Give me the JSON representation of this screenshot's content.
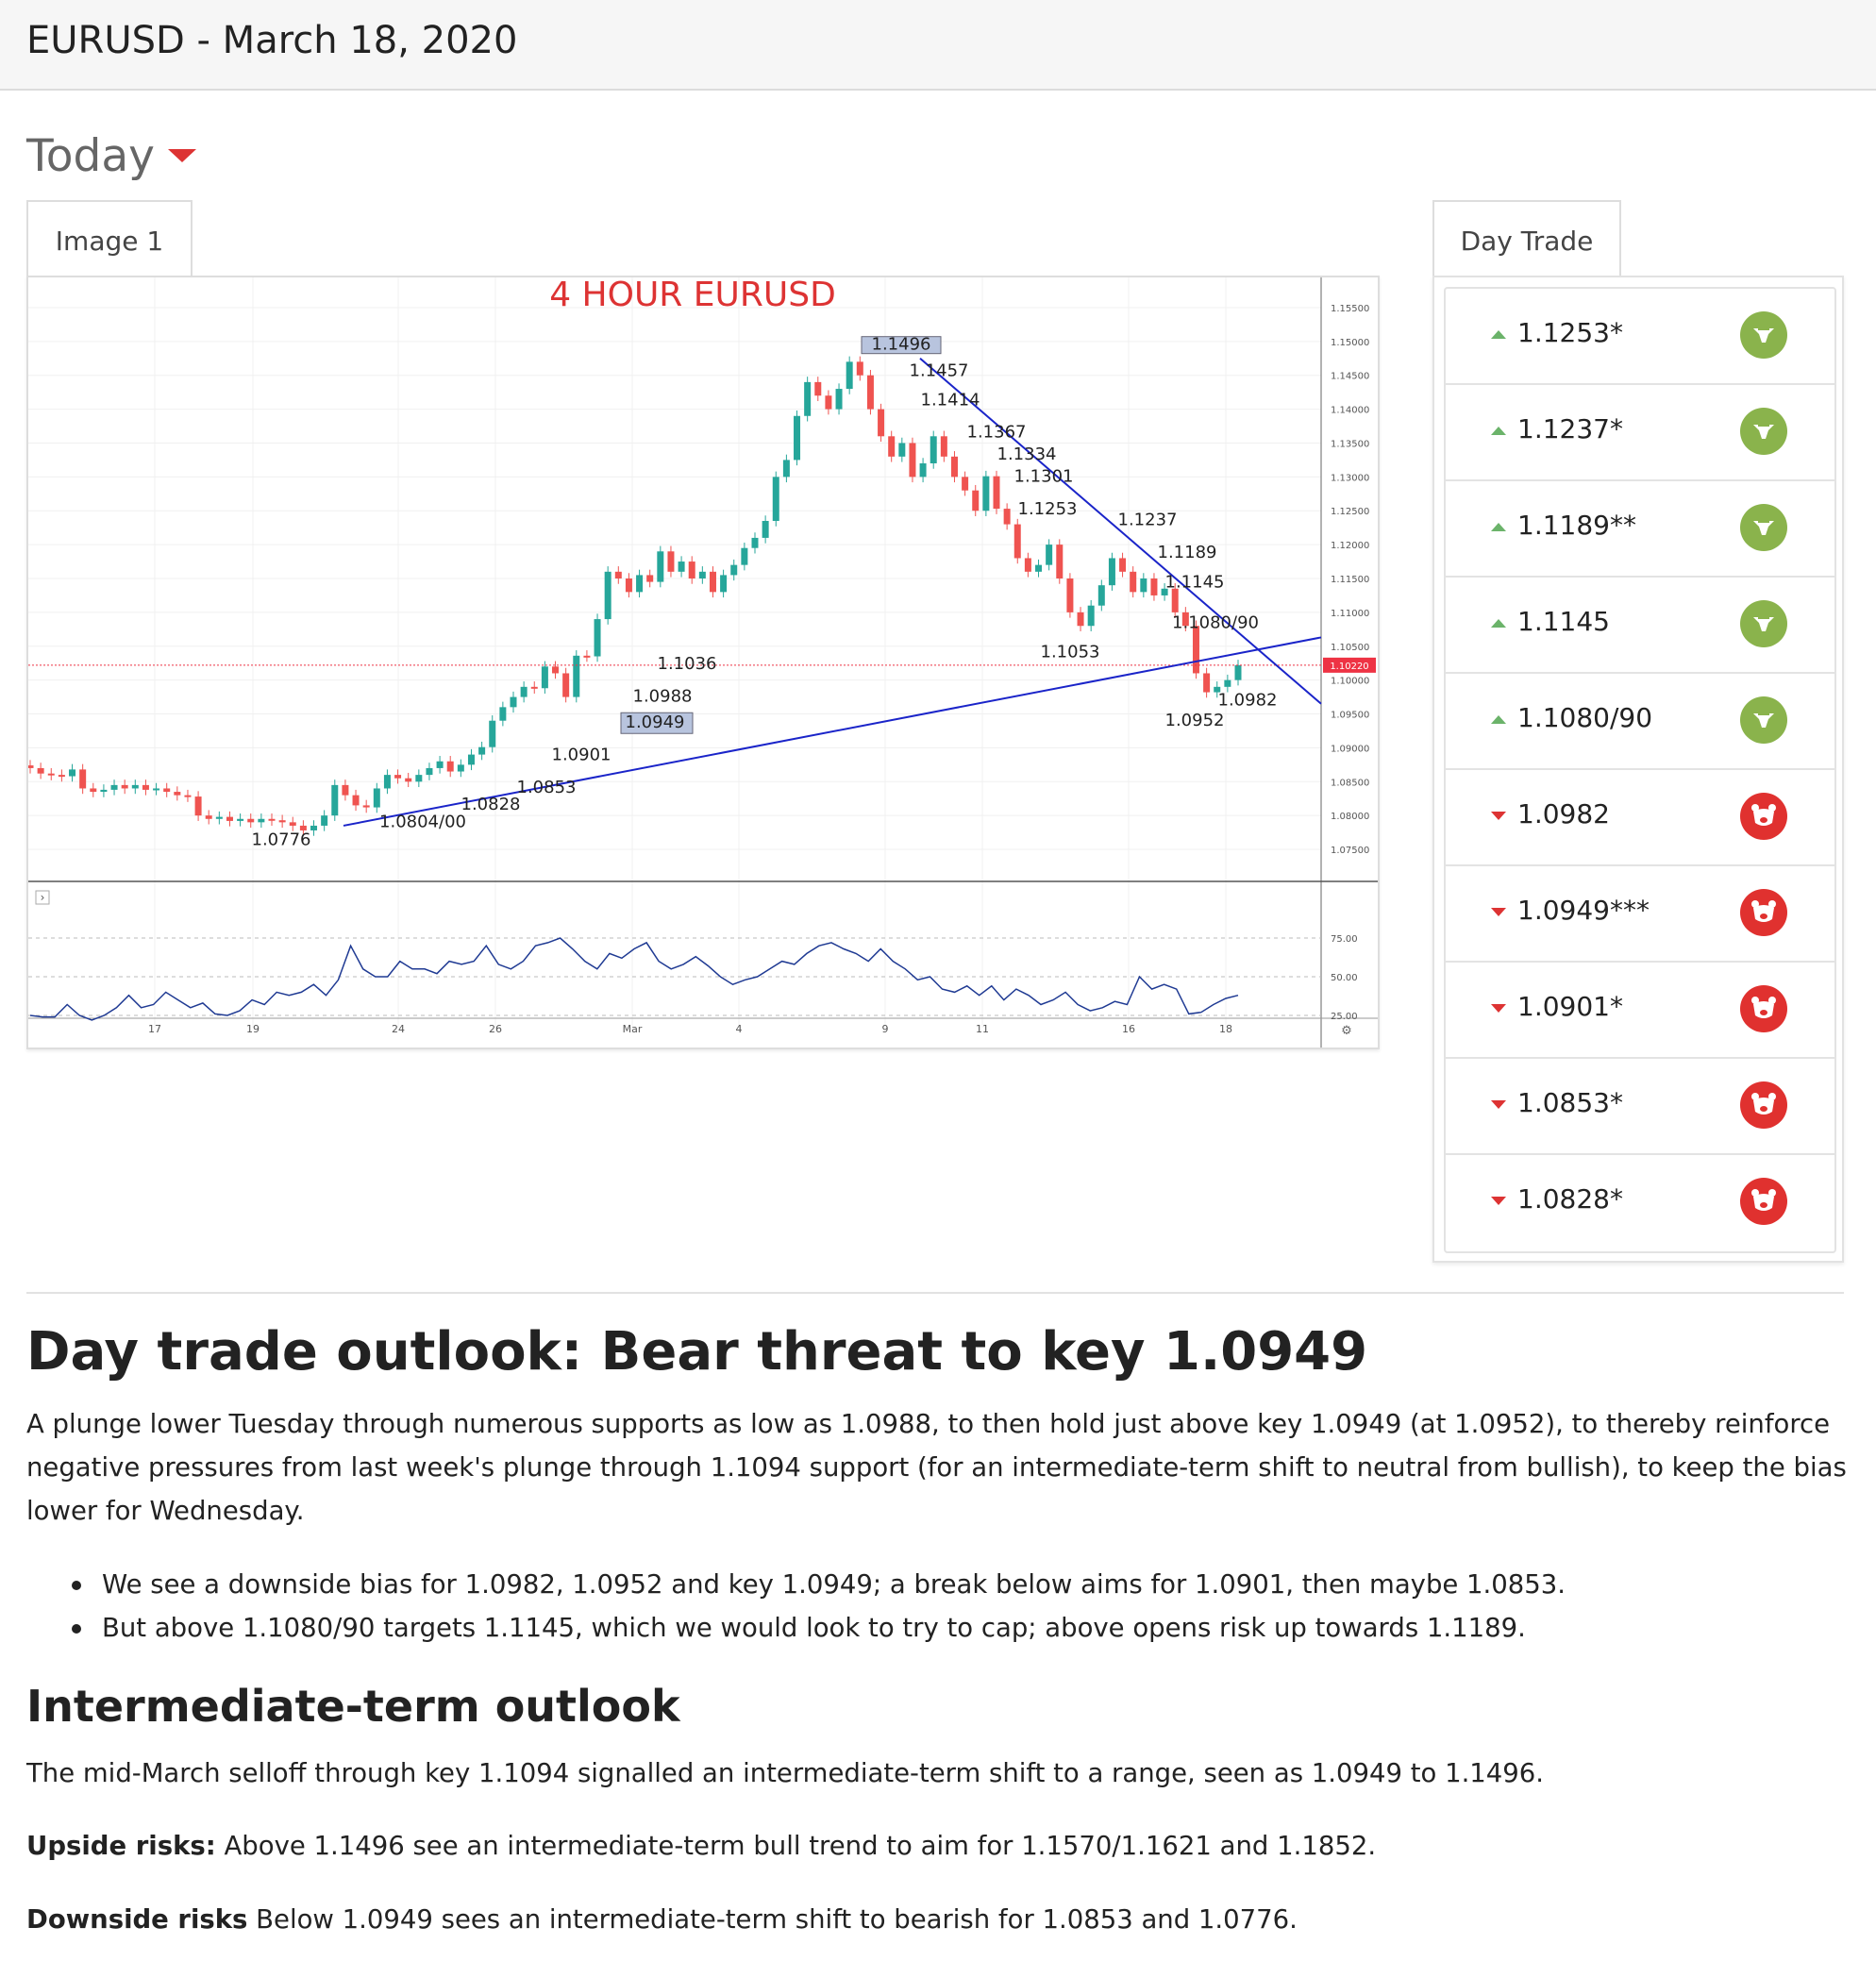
{
  "header": {
    "title": "EURUSD - March 18, 2020"
  },
  "today_label": "Today",
  "tabs": {
    "image_tab": "Image 1",
    "daytrade_tab": "Day Trade"
  },
  "colors": {
    "bull": "#8ab34c",
    "bear": "#e0312f",
    "candle_up": "#26a69a",
    "candle_down": "#ef5350",
    "trendline": "#1a24c9"
  },
  "day_trade_levels": [
    {
      "value": "1.1253*",
      "dir": "up",
      "icon": "bull-icon"
    },
    {
      "value": "1.1237*",
      "dir": "up",
      "icon": "bull-icon"
    },
    {
      "value": "1.1189**",
      "dir": "up",
      "icon": "bull-icon"
    },
    {
      "value": "1.1145",
      "dir": "up",
      "icon": "bull-icon"
    },
    {
      "value": "1.1080/90",
      "dir": "up",
      "icon": "bull-icon"
    },
    {
      "value": "1.0982",
      "dir": "down",
      "icon": "bear-icon"
    },
    {
      "value": "1.0949***",
      "dir": "down",
      "icon": "bear-icon"
    },
    {
      "value": "1.0901*",
      "dir": "down",
      "icon": "bear-icon"
    },
    {
      "value": "1.0853*",
      "dir": "down",
      "icon": "bear-icon"
    },
    {
      "value": "1.0828*",
      "dir": "down",
      "icon": "bear-icon"
    }
  ],
  "chart_data": {
    "type": "candlestick",
    "title": "4 HOUR EURUSD",
    "y_ticks": [
      "1.15500",
      "1.15000",
      "1.14500",
      "1.14000",
      "1.13500",
      "1.13000",
      "1.12500",
      "1.12000",
      "1.11500",
      "1.11000",
      "1.10500",
      "1.10000",
      "1.09500",
      "1.09000",
      "1.08500",
      "1.08000",
      "1.07500"
    ],
    "ylim": [
      1.0725,
      1.1575
    ],
    "current_price": "1.10220",
    "x_ticks": [
      "17",
      "19",
      "24",
      "26",
      "Mar",
      "4",
      "9",
      "11",
      "16",
      "18"
    ],
    "close_path": [
      1.087,
      1.0862,
      1.086,
      1.0858,
      1.0868,
      1.084,
      1.0835,
      1.0838,
      1.0845,
      1.084,
      1.0845,
      1.0838,
      1.084,
      1.0835,
      1.083,
      1.0828,
      1.08,
      1.0795,
      1.0798,
      1.0792,
      1.0795,
      1.079,
      1.0795,
      1.0793,
      1.079,
      1.0785,
      1.0778,
      1.0785,
      1.08,
      1.0845,
      1.083,
      1.0815,
      1.0812,
      1.084,
      1.086,
      1.0855,
      1.085,
      1.086,
      1.087,
      1.088,
      1.0865,
      1.0875,
      1.089,
      1.0901,
      1.094,
      1.096,
      1.0975,
      1.099,
      1.0988,
      1.102,
      1.101,
      1.0975,
      1.1036,
      1.1035,
      1.109,
      1.116,
      1.115,
      1.113,
      1.1155,
      1.1145,
      1.119,
      1.116,
      1.1175,
      1.115,
      1.116,
      1.113,
      1.1155,
      1.117,
      1.1195,
      1.121,
      1.1235,
      1.13,
      1.1325,
      1.139,
      1.144,
      1.142,
      1.14,
      1.143,
      1.147,
      1.145,
      1.14,
      1.136,
      1.133,
      1.135,
      1.13,
      1.132,
      1.136,
      1.133,
      1.13,
      1.128,
      1.125,
      1.1301,
      1.1253,
      1.123,
      1.118,
      1.116,
      1.117,
      1.12,
      1.115,
      1.11,
      1.108,
      1.111,
      1.114,
      1.118,
      1.116,
      1.113,
      1.115,
      1.1125,
      1.1135,
      1.11,
      1.108,
      1.101,
      1.0982,
      1.099,
      1.1,
      1.1022
    ],
    "levels_upper": [
      {
        "price": 1.1496,
        "label": "1.1496",
        "boxed": true
      },
      {
        "price": 1.1457,
        "label": "1.1457"
      },
      {
        "price": 1.1414,
        "label": "1.1414"
      },
      {
        "price": 1.1367,
        "label": "1.1367"
      },
      {
        "price": 1.1334,
        "label": "1.1334"
      },
      {
        "price": 1.1301,
        "label": "1.1301"
      },
      {
        "price": 1.1253,
        "label": "1.1253"
      },
      {
        "price": 1.1237,
        "label": "1.1237"
      },
      {
        "price": 1.1189,
        "label": "1.1189"
      },
      {
        "price": 1.1145,
        "label": "1.1145"
      },
      {
        "price": 1.1085,
        "label": "1.1080/90"
      }
    ],
    "levels_lower": [
      {
        "price": 1.1053,
        "label": "1.1053"
      },
      {
        "price": 1.1036,
        "label": "1.1036"
      },
      {
        "price": 1.0988,
        "label": "1.0988"
      },
      {
        "price": 1.0982,
        "label": "1.0982"
      },
      {
        "price": 1.0952,
        "label": "1.0952"
      },
      {
        "price": 1.0949,
        "label": "1.0949",
        "boxed": true
      },
      {
        "price": 1.0901,
        "label": "1.0901"
      },
      {
        "price": 1.0853,
        "label": "1.0853"
      },
      {
        "price": 1.0828,
        "label": "1.0828"
      },
      {
        "price": 1.0802,
        "label": "1.0804/00"
      },
      {
        "price": 1.0776,
        "label": "1.0776"
      }
    ],
    "rsi_ticks": [
      "75.00",
      "50.00",
      "25.00"
    ],
    "rsi_values": [
      25,
      24,
      24,
      32,
      25,
      22,
      25,
      30,
      38,
      30,
      32,
      40,
      35,
      30,
      33,
      26,
      25,
      28,
      35,
      32,
      40,
      38,
      40,
      45,
      38,
      48,
      70,
      55,
      50,
      50,
      60,
      55,
      55,
      52,
      60,
      58,
      60,
      70,
      58,
      55,
      60,
      70,
      72,
      75,
      68,
      60,
      55,
      65,
      62,
      68,
      72,
      60,
      55,
      58,
      63,
      57,
      50,
      45,
      48,
      50,
      55,
      60,
      58,
      65,
      70,
      72,
      68,
      65,
      60,
      68,
      60,
      55,
      48,
      50,
      42,
      40,
      44,
      38,
      44,
      35,
      42,
      38,
      32,
      35,
      40,
      32,
      28,
      30,
      34,
      32,
      50,
      42,
      45,
      42,
      26,
      27,
      32,
      36,
      38
    ]
  },
  "article": {
    "headline": "Day trade outlook: Bear threat to key 1.0949",
    "intro": "A plunge lower Tuesday through numerous supports as low as 1.0988, to then hold just above key 1.0949 (at 1.0952), to thereby reinforce negative pressures from last week's plunge through 1.1094 support (for an intermediate-term shift to neutral from bullish), to keep the bias lower for Wednesday.",
    "bullets": [
      "We see a downside bias for 1.0982, 1.0952 and key 1.0949; a break below aims for 1.0901, then maybe 1.0853.",
      "But above 1.1080/90 targets 1.1145, which we would look to try to cap; above opens risk up towards 1.1189."
    ],
    "intermediate_heading": "Intermediate-term outlook",
    "intermediate_text": "The mid-March selloff through key 1.1094 signalled an intermediate-term shift to a range, seen as 1.0949 to 1.1496.",
    "upside_label": "Upside risks:",
    "upside_text": " Above 1.1496 see an intermediate-term bull trend to aim for 1.1570/1.1621 and 1.1852.",
    "downside_label": "Downside risks",
    "downside_text": " Below 1.0949 sees an intermediate-term shift to bearish for 1.0853 and 1.0776."
  }
}
